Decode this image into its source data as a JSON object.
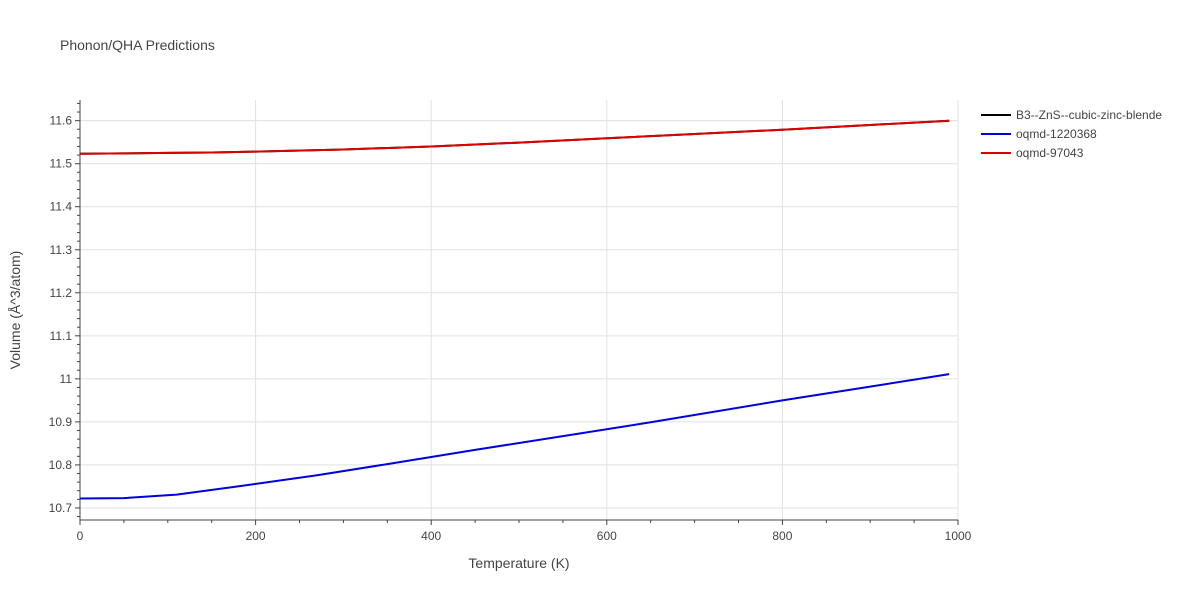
{
  "chart_data": {
    "type": "line",
    "title": "Phonon/QHA Predictions",
    "xlabel": "Temperature (K)",
    "ylabel": "Volume (Å^3/atom)",
    "xlim": [
      0,
      1000
    ],
    "ylim": [
      10.672,
      11.648
    ],
    "x_ticks": [
      0,
      200,
      400,
      600,
      800,
      1000
    ],
    "y_ticks": [
      10.7,
      10.8,
      10.9,
      11,
      11.1,
      11.2,
      11.3,
      11.4,
      11.5,
      11.6
    ],
    "x_tick_labels": [
      "0",
      "200",
      "400",
      "600",
      "800",
      "1000"
    ],
    "y_tick_labels": [
      "10.7",
      "10.8",
      "10.9",
      "11",
      "11.1",
      "11.2",
      "11.3",
      "11.4",
      "11.5",
      "11.6"
    ],
    "grid": true,
    "legend_position": "top-right",
    "series": [
      {
        "name": "B3--ZnS--cubic-zinc-blende",
        "color": "#000000",
        "x": [
          0,
          50,
          100,
          150,
          200,
          300,
          400,
          500,
          600,
          700,
          800,
          900,
          990
        ],
        "y": [
          11.523,
          11.524,
          11.525,
          11.526,
          11.528,
          11.533,
          11.54,
          11.549,
          11.559,
          11.569,
          11.579,
          11.59,
          11.6
        ]
      },
      {
        "name": "oqmd-1220368",
        "color": "#0000dd",
        "x": [
          0,
          50,
          110,
          180,
          270,
          350,
          450,
          550,
          650,
          800,
          900,
          990
        ],
        "y": [
          10.722,
          10.723,
          10.731,
          10.75,
          10.776,
          10.802,
          10.835,
          10.867,
          10.899,
          10.95,
          10.982,
          11.011
        ]
      },
      {
        "name": "oqmd-97043",
        "color": "#dd0000",
        "x": [
          0,
          50,
          100,
          150,
          200,
          300,
          400,
          500,
          600,
          700,
          800,
          900,
          990
        ],
        "y": [
          11.523,
          11.524,
          11.525,
          11.526,
          11.528,
          11.533,
          11.54,
          11.549,
          11.559,
          11.569,
          11.579,
          11.59,
          11.6
        ]
      }
    ]
  }
}
